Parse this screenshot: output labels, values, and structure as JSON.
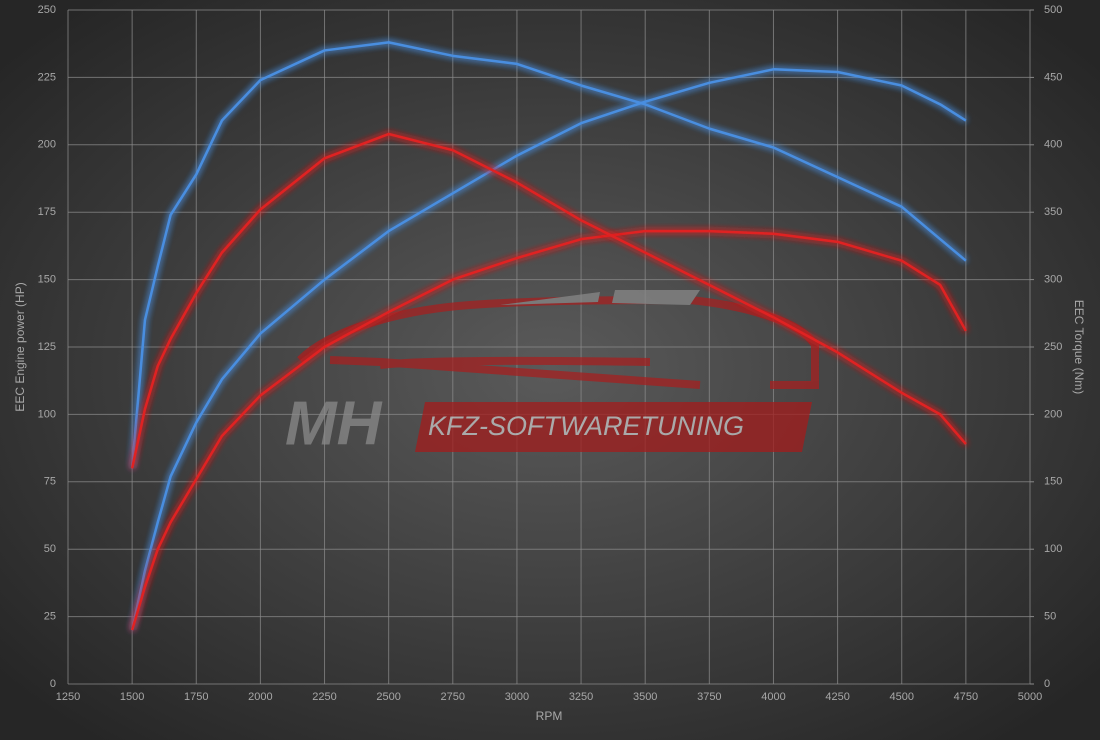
{
  "chart_data": {
    "type": "line",
    "x_label": "RPM",
    "y_label": "EEC Engine power (HP)",
    "y2_label": "EEC Torque (Nm)",
    "watermark": [
      "MH",
      "KFZ-SOFTWARETUNING"
    ],
    "x": [
      1500,
      1550,
      1600,
      1650,
      1750,
      1850,
      2000,
      2250,
      2500,
      2750,
      3000,
      3250,
      3500,
      3750,
      4000,
      4250,
      4500,
      4650,
      4750
    ],
    "series": [
      {
        "color": "#4a8ee0",
        "axis": "y",
        "values": [
          20,
          42,
          60,
          77,
          97,
          113,
          130,
          150,
          168,
          182,
          196,
          208,
          216,
          223,
          228,
          227,
          222,
          215,
          209
        ]
      },
      {
        "color": "#e02424",
        "axis": "y",
        "values": [
          20,
          36,
          50,
          60,
          76,
          92,
          107,
          125,
          138,
          150,
          158,
          165,
          168,
          168,
          167,
          164,
          157,
          148,
          131
        ]
      },
      {
        "color": "#4a8ee0",
        "axis": "y2",
        "values": [
          160,
          270,
          310,
          348,
          378,
          418,
          448,
          470,
          476,
          466,
          460,
          444,
          430,
          412,
          398,
          376,
          354,
          330,
          314
        ]
      },
      {
        "color": "#e02424",
        "axis": "y2",
        "values": [
          160,
          204,
          236,
          256,
          290,
          320,
          352,
          390,
          408,
          396,
          372,
          344,
          320,
          296,
          272,
          246,
          216,
          200,
          178
        ]
      }
    ],
    "xlim": [
      1250,
      5000
    ],
    "xticks": [
      1250,
      1500,
      1750,
      2000,
      2250,
      2500,
      2750,
      3000,
      3250,
      3500,
      3750,
      4000,
      4250,
      4500,
      4750,
      5000
    ],
    "ylim": [
      0,
      250
    ],
    "yticks": [
      0,
      25,
      50,
      75,
      100,
      125,
      150,
      175,
      200,
      225,
      250
    ],
    "y2lim": [
      0,
      500
    ],
    "y2ticks": [
      0,
      50,
      100,
      150,
      200,
      250,
      300,
      350,
      400,
      450,
      500
    ],
    "grid": true
  }
}
